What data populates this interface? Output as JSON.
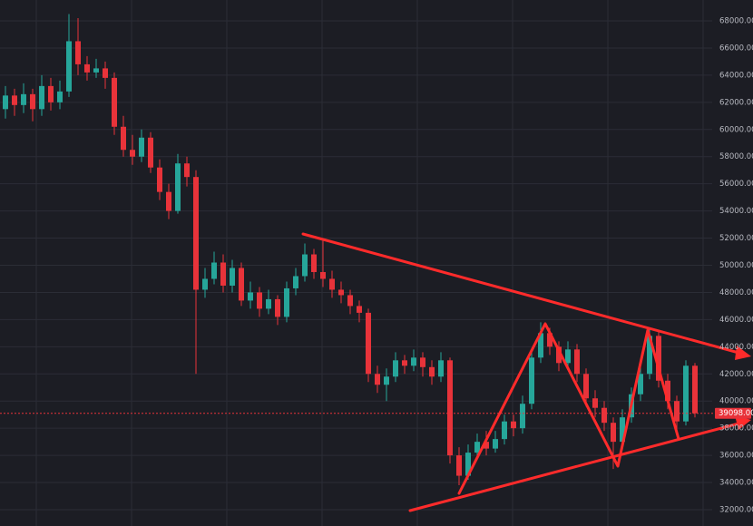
{
  "chart_data": {
    "type": "candlestick",
    "open": [
      61500,
      62500,
      61800,
      62600,
      61500,
      63200,
      62000,
      62800,
      66500,
      64800,
      64200,
      64500,
      63800,
      60200,
      58500,
      58000,
      59400,
      57200,
      55400,
      54000,
      57500,
      56500,
      48200,
      49000,
      50200,
      48500,
      49800,
      47400,
      48000,
      46800,
      47500,
      46200,
      48300,
      49200,
      50800,
      49500,
      49000,
      48200,
      47800,
      47000,
      46500,
      42000,
      41200,
      41800,
      43000,
      42600,
      43200,
      42500,
      41800,
      43000,
      36000,
      34500,
      36200,
      37000,
      36500,
      37200,
      38500,
      38000,
      39800,
      43200,
      45000,
      44000,
      42800,
      43800,
      42000,
      40200,
      39500,
      38400,
      37000,
      38800,
      40500,
      42000,
      44800,
      41500,
      40000,
      38500,
      42600
    ],
    "high": [
      63200,
      63000,
      63400,
      63000,
      64000,
      63800,
      63600,
      68500,
      68200,
      65400,
      65200,
      65000,
      64200,
      61000,
      59600,
      60000,
      59800,
      57800,
      56000,
      58200,
      58000,
      57000,
      49800,
      51000,
      50800,
      50400,
      50200,
      48800,
      48400,
      48200,
      47800,
      48800,
      49800,
      51600,
      51200,
      51800,
      49600,
      48800,
      48200,
      47400,
      46800,
      42600,
      42400,
      43600,
      43400,
      43800,
      43600,
      43000,
      43600,
      43200,
      36600,
      36800,
      37600,
      37800,
      37800,
      39000,
      39000,
      40400,
      43800,
      45800,
      45400,
      44400,
      44400,
      44200,
      42400,
      40800,
      40000,
      38800,
      39400,
      41000,
      42600,
      45400,
      45200,
      42000,
      40400,
      43000,
      42800
    ],
    "low": [
      60800,
      61000,
      61200,
      60600,
      61000,
      61400,
      61500,
      62400,
      64000,
      63600,
      63800,
      63000,
      59600,
      58000,
      57400,
      57600,
      56800,
      54800,
      53400,
      53800,
      55800,
      42000,
      47600,
      48600,
      48000,
      48000,
      47000,
      46800,
      46200,
      46400,
      45600,
      45800,
      47800,
      48800,
      49000,
      48400,
      47600,
      47200,
      46400,
      45800,
      41400,
      40600,
      40000,
      41400,
      42000,
      42200,
      41800,
      41200,
      41400,
      35400,
      33800,
      34200,
      35800,
      36000,
      36200,
      36800,
      37400,
      37600,
      39400,
      42800,
      43400,
      42200,
      42400,
      41400,
      39600,
      38800,
      37800,
      35000,
      36600,
      38400,
      40000,
      41600,
      41000,
      39400,
      37800,
      38200,
      38800
    ],
    "close": [
      62500,
      61800,
      62600,
      61500,
      63200,
      62000,
      62800,
      66500,
      64800,
      64200,
      64500,
      63800,
      60200,
      58500,
      58000,
      59400,
      57200,
      55400,
      54000,
      57500,
      56500,
      48200,
      49000,
      50200,
      48500,
      49800,
      47400,
      48000,
      46800,
      47500,
      46200,
      48300,
      49200,
      50800,
      49500,
      49000,
      48200,
      47800,
      47000,
      46500,
      42000,
      41200,
      41800,
      43000,
      42600,
      43200,
      42500,
      41800,
      43000,
      36000,
      34500,
      36200,
      37000,
      36500,
      37200,
      38500,
      38000,
      39800,
      43200,
      45000,
      44000,
      42800,
      43800,
      42000,
      40200,
      39500,
      38400,
      37000,
      38800,
      40500,
      42000,
      44800,
      41500,
      40000,
      38500,
      42600,
      39100
    ],
    "up_color": "#26a69a",
    "down_color": "#e8333a",
    "last_price": {
      "value": 39098,
      "label": "39098.00"
    },
    "ylim": [
      32000,
      68000
    ],
    "yticks": [
      {
        "value": 32000,
        "label": "32000.00"
      },
      {
        "value": 34000,
        "label": "34000.00"
      },
      {
        "value": 36000,
        "label": "36000.00"
      },
      {
        "value": 38000,
        "label": "38000.00"
      },
      {
        "value": 40000,
        "label": "40000.00"
      },
      {
        "value": 42000,
        "label": "42000.00"
      },
      {
        "value": 44000,
        "label": "44000.00"
      },
      {
        "value": 46000,
        "label": "46000.00"
      },
      {
        "value": 48000,
        "label": "48000.00"
      },
      {
        "value": 50000,
        "label": "50000.00"
      },
      {
        "value": 52000,
        "label": "52000.00"
      },
      {
        "value": 54000,
        "label": "54000.00"
      },
      {
        "value": 56000,
        "label": "56000.00"
      },
      {
        "value": 58000,
        "label": "58000.00"
      },
      {
        "value": 60000,
        "label": "60000.00"
      },
      {
        "value": 62000,
        "label": "62000.00"
      },
      {
        "value": 64000,
        "label": "64000.00"
      },
      {
        "value": 66000,
        "label": "66000.00"
      },
      {
        "value": 68000,
        "label": "68000.00"
      }
    ],
    "grid": true
  }
}
